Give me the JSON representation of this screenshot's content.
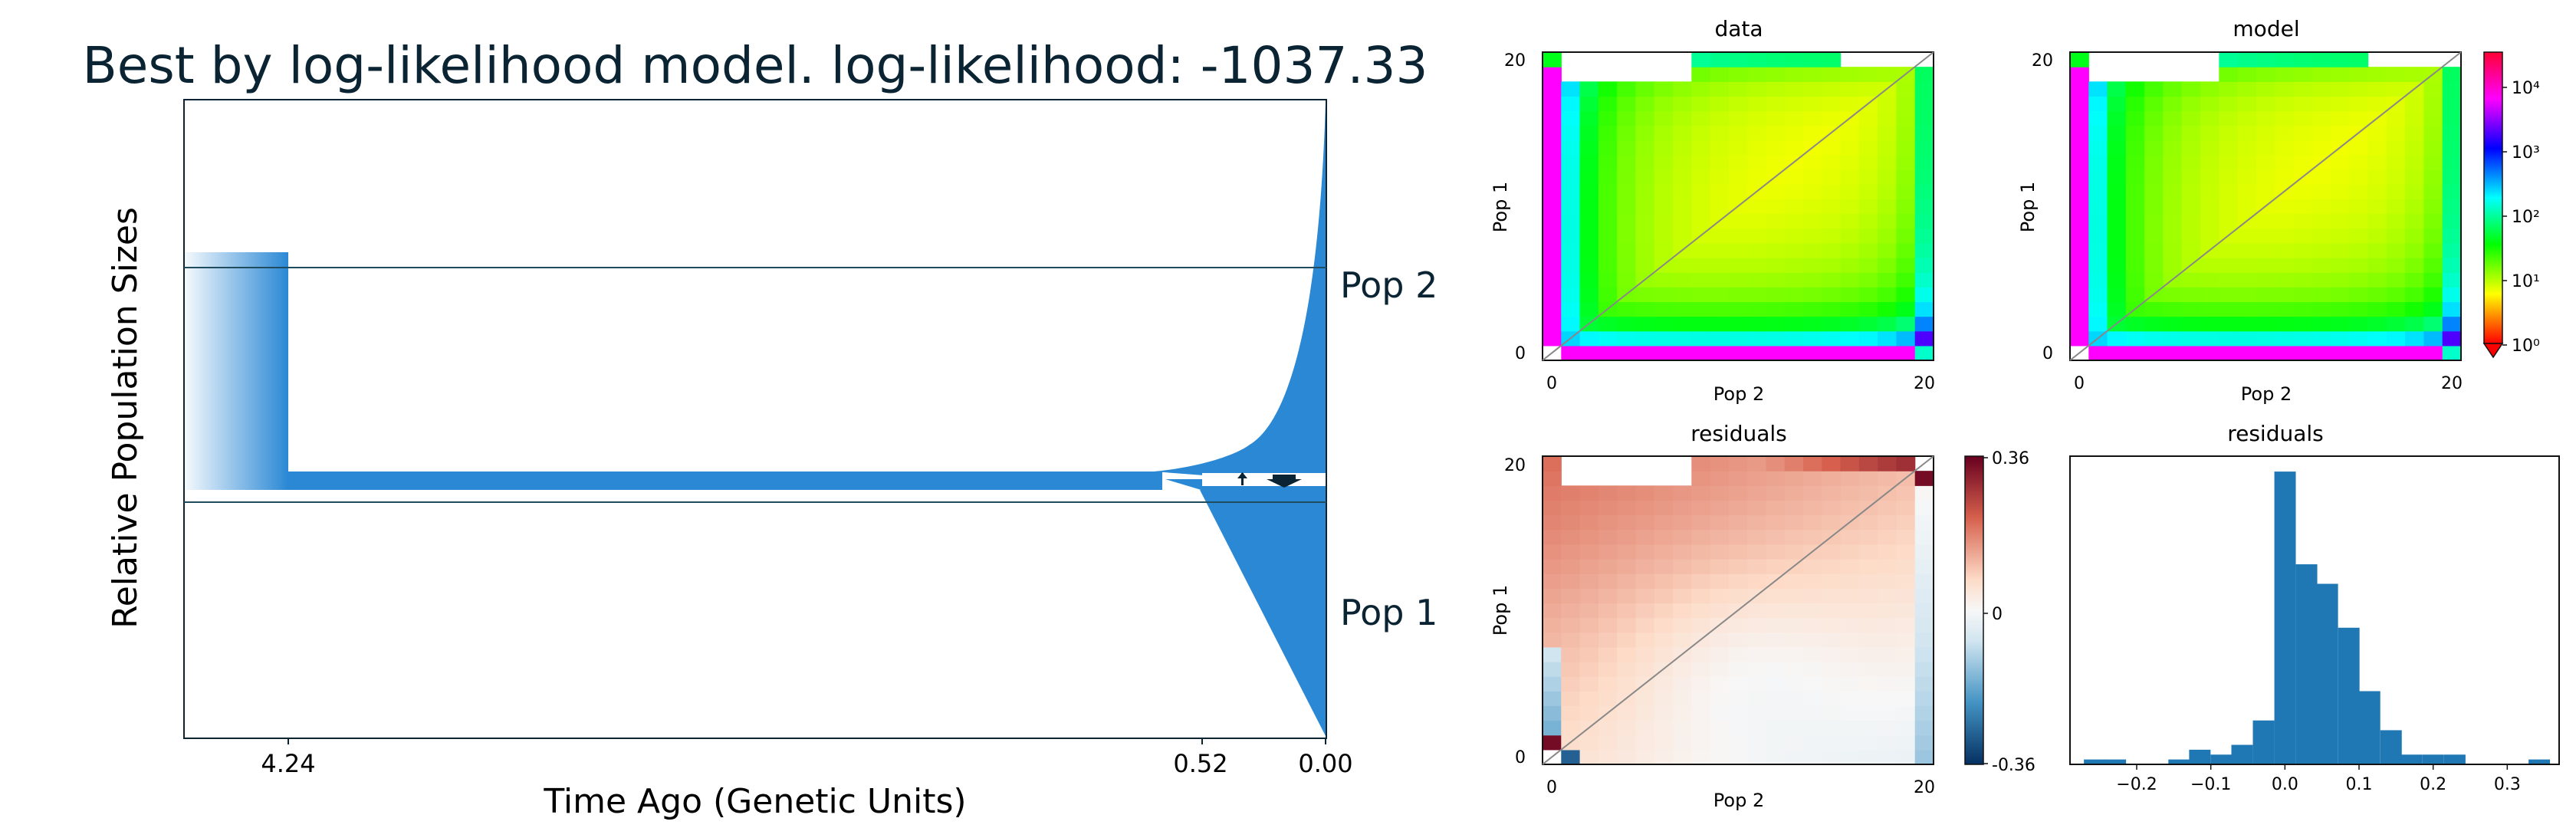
{
  "chart_data": [
    {
      "type": "area",
      "title": "Best by log-likelihood model. log-likelihood: -1037.33",
      "xlabel": "Time Ago (Genetic Units)",
      "ylabel": "Relative Population Sizes",
      "xticks": [
        "4.24",
        "0.52",
        "0.00"
      ],
      "series": [
        {
          "name": "Pop 2",
          "values": [
            {
              "t": 4.24,
              "size": 0.36
            },
            {
              "t": 0.52,
              "size": 0.03
            },
            {
              "t": 0.0,
              "size": 1.0
            }
          ]
        },
        {
          "name": "Pop 1",
          "values": [
            {
              "t": 0.52,
              "size": 0.03
            },
            {
              "t": 0.0,
              "size": 0.65
            }
          ]
        }
      ],
      "migration": {
        "direction": "Pop 2 to Pop 1",
        "start": 0.52,
        "end": 0.0
      }
    },
    {
      "type": "heatmap",
      "title": "data",
      "xlabel": "Pop 2",
      "ylabel": "Pop 1",
      "xticks": [
        "0",
        "20"
      ],
      "yticks": [
        "0",
        "20"
      ],
      "n": 21,
      "scale": "log",
      "colormap": "hsv"
    },
    {
      "type": "heatmap",
      "title": "model",
      "xlabel": "Pop 2",
      "ylabel": "Pop 1",
      "xticks": [
        "0",
        "20"
      ],
      "yticks": [
        "0",
        "20"
      ],
      "n": 21,
      "scale": "log",
      "colormap": "hsv",
      "colorbar_ticks": [
        "10⁰",
        "10¹",
        "10²",
        "10³",
        "10⁴"
      ]
    },
    {
      "type": "heatmap",
      "title": "residuals",
      "xlabel": "Pop 2",
      "ylabel": "Pop 1",
      "xticks": [
        "0",
        "20"
      ],
      "yticks": [
        "0",
        "20"
      ],
      "n": 21,
      "colormap": "RdBu_r",
      "colorbar_ticks": [
        "0.36",
        "0",
        "-0.36"
      ],
      "colorbar_range": [
        -0.36,
        0.36
      ]
    },
    {
      "type": "bar",
      "title": "residuals",
      "xticks": [
        "−0.2",
        "−0.1",
        "0.0",
        "0.1",
        "0.2",
        "0.3"
      ],
      "xlim": [
        -0.29,
        0.37
      ],
      "bin_width": 0.0285,
      "bins": [
        {
          "x": -0.257,
          "count": 1
        },
        {
          "x": -0.229,
          "count": 1
        },
        {
          "x": -0.2,
          "count": 0
        },
        {
          "x": -0.172,
          "count": 0
        },
        {
          "x": -0.143,
          "count": 1
        },
        {
          "x": -0.115,
          "count": 3
        },
        {
          "x": -0.086,
          "count": 2
        },
        {
          "x": -0.058,
          "count": 4
        },
        {
          "x": -0.029,
          "count": 9
        },
        {
          "x": 0.0,
          "count": 60
        },
        {
          "x": 0.029,
          "count": 41
        },
        {
          "x": 0.057,
          "count": 37
        },
        {
          "x": 0.086,
          "count": 28
        },
        {
          "x": 0.114,
          "count": 15
        },
        {
          "x": 0.143,
          "count": 7
        },
        {
          "x": 0.171,
          "count": 2
        },
        {
          "x": 0.2,
          "count": 2
        },
        {
          "x": 0.229,
          "count": 2
        },
        {
          "x": 0.257,
          "count": 0
        },
        {
          "x": 0.286,
          "count": 0
        },
        {
          "x": 0.314,
          "count": 0
        },
        {
          "x": 0.343,
          "count": 1
        }
      ]
    }
  ],
  "labels": {
    "pop2": "Pop 2",
    "pop1": "Pop 1"
  }
}
